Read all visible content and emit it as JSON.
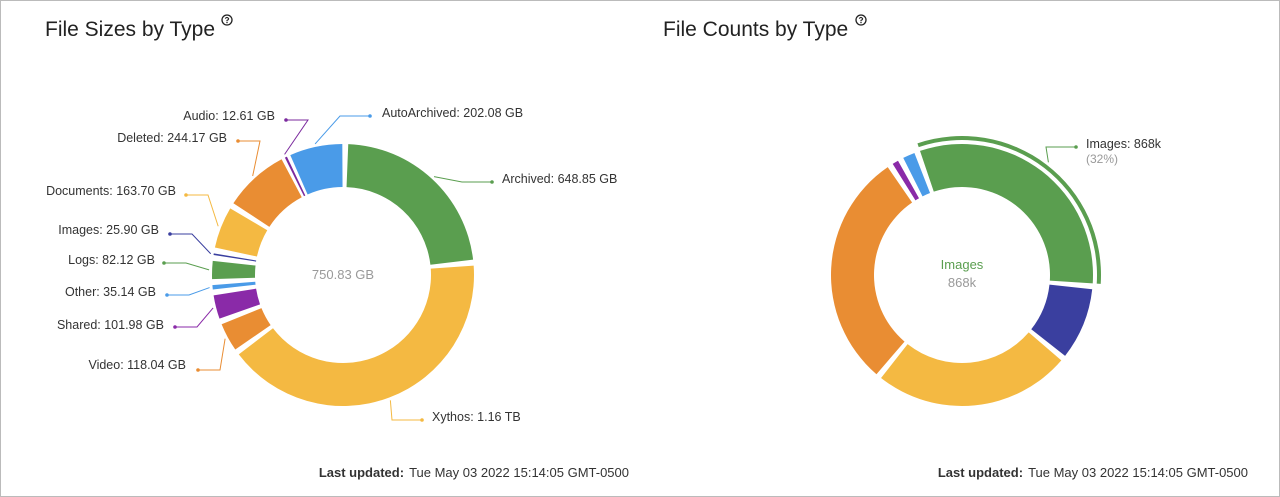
{
  "chart_data": [
    {
      "type": "pie",
      "title": "File Sizes by Type",
      "center_label": "750.83 GB",
      "values": [
        648.85,
        1160,
        118.04,
        101.98,
        35.14,
        82.12,
        25.9,
        163.7,
        244.17,
        12.61,
        202.08
      ],
      "value_labels": [
        "Archived: 648.85 GB",
        "Xythos: 1.16 TB",
        "Video: 118.04 GB",
        "Shared: 101.98 GB",
        "Other: 35.14 GB",
        "Logs: 82.12 GB",
        "Images: 25.90 GB",
        "Documents: 163.70 GB",
        "Deleted: 244.17 GB",
        "Audio: 12.61 GB",
        "AutoArchived: 202.08 GB"
      ],
      "colors": [
        "#5a9e4f",
        "#f4b942",
        "#e98d33",
        "#8a2aa8",
        "#4a9be8",
        "#5a9e4f",
        "#3a3f9f",
        "#f4b942",
        "#e98d33",
        "#7b2a9e",
        "#4a9be8"
      ],
      "footer_label": "Last updated:",
      "footer_text": "Tue May 03 2022 15:14:05 GMT-0500"
    },
    {
      "type": "pie",
      "title": "File Counts by Type",
      "center_label": "Images",
      "center_value": "868k",
      "values": [
        868,
        260,
        680,
        810,
        40,
        60
      ],
      "value_labels": [
        "Images: 868k",
        null,
        null,
        null,
        null,
        null
      ],
      "percent_label": "(32%)",
      "colors": [
        "#5a9e4f",
        "#3a3f9f",
        "#f4b942",
        "#e98d33",
        "#8a2aa8",
        "#4a9be8"
      ],
      "footer_label": "Last updated:",
      "footer_text": "Tue May 03 2022 15:14:05 GMT-0500"
    }
  ]
}
